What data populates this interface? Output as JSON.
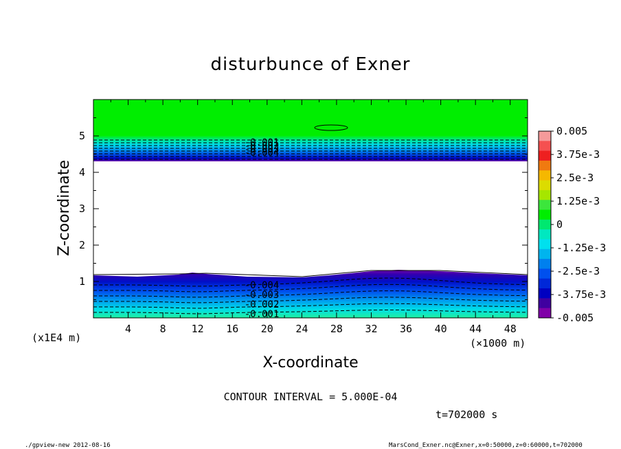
{
  "chart_data": {
    "type": "contour",
    "title": "disturbunce of Exner",
    "xlabel": "X-coordinate",
    "ylabel": "Z-coordinate",
    "x_unit": "(×1000 m)",
    "y_unit": "(x1E4 m)",
    "x_ticks": [
      "4",
      "8",
      "12",
      "16",
      "20",
      "24",
      "28",
      "32",
      "36",
      "40",
      "44",
      "48"
    ],
    "y_ticks": [
      "1",
      "2",
      "3",
      "4",
      "5"
    ],
    "xlim": [
      0,
      50
    ],
    "ylim": [
      0,
      6
    ],
    "contour_interval": "CONTOUR INTERVAL = 5.000E-04",
    "time_label": "t=702000 s",
    "colorbar": {
      "labels": [
        "0.005",
        "3.75e-3",
        "2.5e-3",
        "1.25e-3",
        "0",
        "-1.25e-3",
        "-2.5e-3",
        "-3.75e-3",
        "-0.005"
      ],
      "colors": [
        "#f59a9a",
        "#f55050",
        "#ee2020",
        "#f07a10",
        "#f5b800",
        "#dcdc00",
        "#a6e600",
        "#3ce63c",
        "#00ee00",
        "#00e870",
        "#00e8c0",
        "#00e0ee",
        "#00b4ee",
        "#0080ee",
        "#0050ee",
        "#0028d8",
        "#0000c0",
        "#4000a0",
        "#8000a8"
      ]
    },
    "upper_contour_labels": [
      "-0.001",
      "-0.002",
      "-0.003",
      "-0.004"
    ],
    "lower_contour_labels": [
      "-0.004",
      "-0.003",
      "-0.002",
      "-0.001"
    ]
  },
  "footer": {
    "left": "./gpview-new   2012-08-16",
    "right": "MarsCond_Exner.nc@Exner,x=0:50000,z=0:60000,t=702000"
  }
}
